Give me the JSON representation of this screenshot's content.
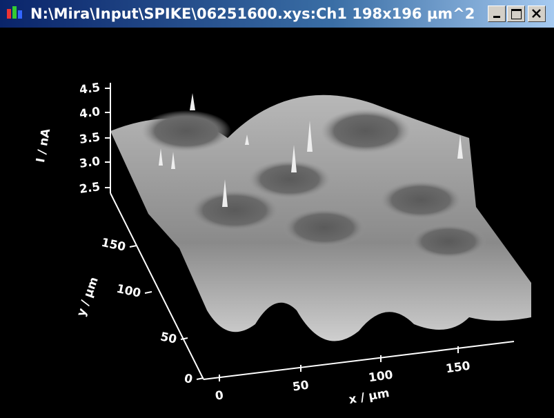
{
  "window": {
    "title": "N:\\Mira\\Input\\SPIKE\\06251600.xys:Ch1 198x196 µm^2"
  },
  "plot": {
    "z_axis": {
      "label": "I / nA",
      "ticks": [
        "4.5",
        "4.0",
        "3.5",
        "3.0",
        "2.5"
      ]
    },
    "y_axis": {
      "label": "y / µm",
      "ticks": [
        "0",
        "50",
        "100",
        "150"
      ]
    },
    "x_axis": {
      "label": "x / µm",
      "ticks": [
        "0",
        "50",
        "100",
        "150"
      ]
    }
  }
}
